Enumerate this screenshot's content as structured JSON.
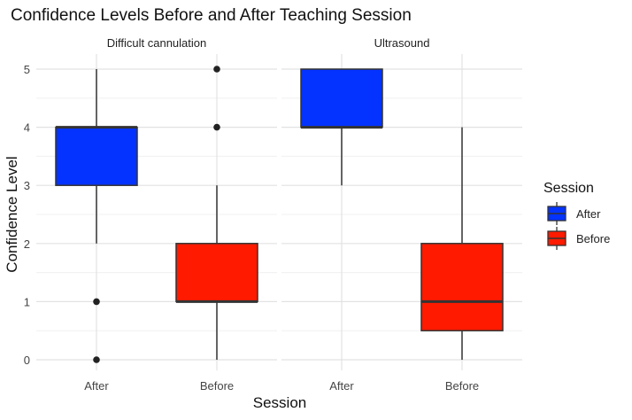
{
  "chart_data": {
    "type": "boxplot",
    "title": "Confidence Levels Before and After Teaching Session",
    "xlabel": "Session",
    "ylabel": "Confidence Level",
    "ylim": [
      0,
      5
    ],
    "yticks": [
      0,
      1,
      2,
      3,
      4,
      5
    ],
    "categories": [
      "After",
      "Before"
    ],
    "grid": true,
    "legend": {
      "title": "Session",
      "placement": "right",
      "entries": [
        {
          "label": "After",
          "color": "#0433ff"
        },
        {
          "label": "Before",
          "color": "#ff1a00"
        }
      ]
    },
    "panels": [
      {
        "title": "Difficult cannulation",
        "boxes": [
          {
            "category": "After",
            "min": 2,
            "q1": 3,
            "median": 4,
            "q3": 4,
            "max": 5,
            "outliers": [
              0,
              1
            ],
            "color": "#0433ff"
          },
          {
            "category": "Before",
            "min": 0,
            "q1": 1,
            "median": 1,
            "q3": 2,
            "max": 3,
            "outliers": [
              4,
              5
            ],
            "color": "#ff1a00"
          }
        ]
      },
      {
        "title": "Ultrasound",
        "boxes": [
          {
            "category": "After",
            "min": 3,
            "q1": 4,
            "median": 4,
            "q3": 5,
            "max": 5,
            "outliers": [],
            "color": "#0433ff"
          },
          {
            "category": "Before",
            "min": 0,
            "q1": 0.5,
            "median": 1,
            "q3": 2,
            "max": 4,
            "outliers": [],
            "color": "#ff1a00"
          }
        ]
      }
    ]
  }
}
